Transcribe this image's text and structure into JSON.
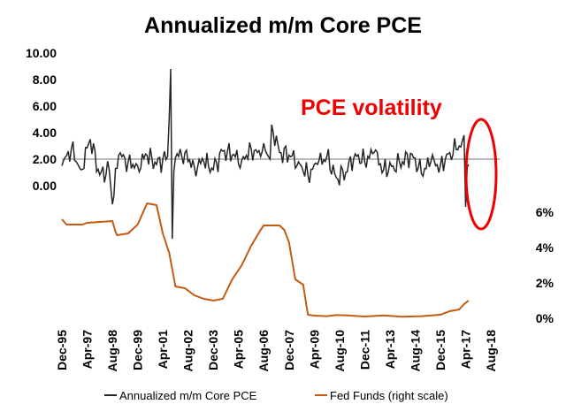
{
  "chart_data": {
    "type": "line",
    "title": "Annualized m/m Core PCE",
    "annotation": "PCE volatility",
    "x_ticks": [
      "Dec-95",
      "Apr-97",
      "Aug-98",
      "Dec-99",
      "Apr-01",
      "Aug-02",
      "Dec-03",
      "Apr-05",
      "Aug-06",
      "Dec-07",
      "Apr-09",
      "Aug-10",
      "Dec-11",
      "Apr-13",
      "Aug-14",
      "Dec-15",
      "Apr-17",
      "Aug-18"
    ],
    "y_left": {
      "ticks": [
        "10.00",
        "8.00",
        "6.00",
        "4.00",
        "2.00",
        "0.00"
      ],
      "range": [
        0,
        10
      ]
    },
    "y_right": {
      "ticks": [
        "6%",
        "4%",
        "2%",
        "0%"
      ],
      "range": [
        0,
        6
      ]
    },
    "reference_line_y": 2.0,
    "series": [
      {
        "name": "Annualized m/m Core PCE",
        "color": "#262626",
        "x": [
          "Dec-95",
          "Jun-96",
          "Dec-96",
          "Jun-97",
          "Dec-97",
          "Jun-98",
          "Aug-98",
          "Dec-98",
          "Jun-99",
          "Dec-99",
          "Jun-00",
          "Dec-00",
          "Jul-01",
          "Sep-01",
          "Oct-01",
          "Nov-01",
          "Dec-01",
          "Jun-02",
          "Dec-02",
          "Jun-03",
          "Dec-03",
          "Jun-04",
          "Dec-04",
          "Jun-05",
          "Dec-05",
          "Jun-06",
          "Aug-06",
          "Dec-06",
          "Jan-07",
          "Jun-07",
          "Dec-07",
          "Jun-08",
          "Dec-08",
          "Jun-09",
          "Dec-09",
          "Jun-10",
          "Dec-10",
          "Jun-11",
          "Dec-11",
          "Jun-12",
          "Dec-12",
          "Jun-13",
          "Dec-13",
          "Jun-14",
          "Dec-14",
          "Jun-15",
          "Dec-15",
          "Jun-16",
          "Dec-16",
          "Feb-17",
          "Mar-17",
          "Apr-17",
          "May-17",
          "Jun-17"
        ],
        "values": [
          1.5,
          2.8,
          1.2,
          3.5,
          0.8,
          1.2,
          -1.4,
          2.3,
          1.8,
          1.5,
          2.3,
          1.6,
          2.2,
          8.8,
          -4.0,
          1.1,
          2.1,
          2.5,
          1.4,
          1.8,
          1.2,
          2.6,
          2.3,
          1.9,
          2.8,
          2.2,
          3.2,
          2.0,
          4.6,
          2.5,
          2.3,
          1.8,
          0.8,
          1.6,
          2.2,
          0.6,
          1.0,
          2.4,
          1.8,
          2.5,
          1.2,
          1.5,
          1.8,
          2.4,
          0.9,
          1.8,
          1.5,
          2.5,
          3.0,
          3.4,
          3.8,
          -1.6,
          1.4,
          1.6
        ]
      },
      {
        "name": "Fed Funds (right scale)",
        "color": "#c55a11",
        "axis": "right",
        "x": [
          "Dec-95",
          "Mar-96",
          "Jan-97",
          "Apr-97",
          "Aug-98",
          "Sep-98",
          "Oct-98",
          "Nov-98",
          "Jun-99",
          "Dec-99",
          "Jun-00",
          "Dec-00",
          "Apr-01",
          "Aug-01",
          "Dec-01",
          "Jun-02",
          "Dec-02",
          "Jun-03",
          "Dec-03",
          "Jun-04",
          "Dec-04",
          "Jun-05",
          "Dec-05",
          "Jun-06",
          "Aug-06",
          "Jun-07",
          "Sep-07",
          "Dec-07",
          "Apr-08",
          "Sep-08",
          "Dec-08",
          "Apr-09",
          "Dec-09",
          "Jun-10",
          "Dec-10",
          "Dec-11",
          "Dec-12",
          "Dec-13",
          "Dec-14",
          "Dec-15",
          "Jun-16",
          "Dec-16",
          "Mar-17",
          "Jun-17"
        ],
        "values": [
          5.6,
          5.3,
          5.3,
          5.4,
          5.5,
          5.2,
          4.9,
          4.7,
          4.8,
          5.3,
          6.5,
          6.4,
          4.8,
          3.7,
          1.8,
          1.7,
          1.3,
          1.1,
          1.0,
          1.1,
          2.2,
          3.0,
          4.1,
          5.0,
          5.25,
          5.25,
          5.0,
          4.3,
          2.2,
          1.9,
          0.2,
          0.15,
          0.12,
          0.18,
          0.17,
          0.1,
          0.16,
          0.09,
          0.12,
          0.2,
          0.4,
          0.5,
          0.8,
          1.0
        ]
      }
    ],
    "legend": {
      "placement": "bottom",
      "entries": [
        "Annualized m/m Core PCE",
        "Fed Funds (right scale)"
      ]
    }
  }
}
